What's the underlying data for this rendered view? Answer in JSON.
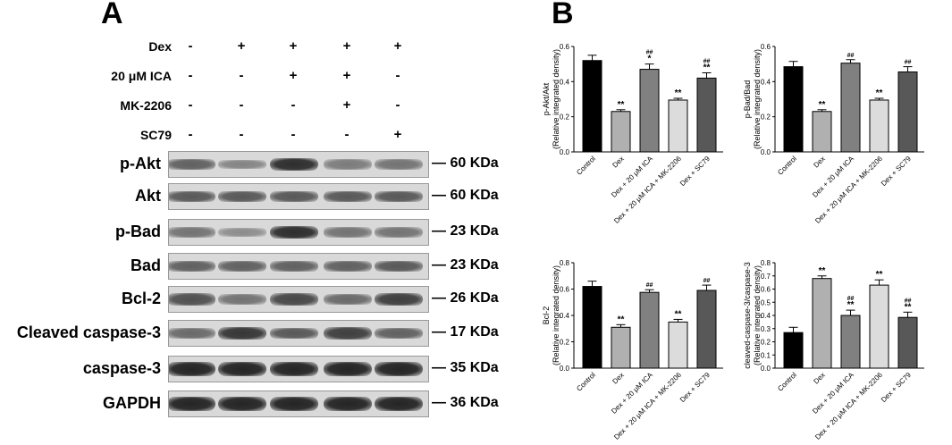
{
  "panelA": {
    "letter": "A",
    "treatments": [
      {
        "label": "Dex",
        "signs": [
          "-",
          "+",
          "+",
          "+",
          "+"
        ]
      },
      {
        "label": "20 μM ICA",
        "signs": [
          "-",
          "-",
          "+",
          "+",
          "-"
        ]
      },
      {
        "label": "MK-2206",
        "signs": [
          "-",
          "-",
          "-",
          "+",
          "-"
        ]
      },
      {
        "label": "SC79",
        "signs": [
          "-",
          "-",
          "-",
          "-",
          "+"
        ]
      }
    ],
    "blots": [
      {
        "label": "p-Akt",
        "kda": "60 KDa",
        "intensity": [
          0.55,
          0.35,
          0.85,
          0.4,
          0.45
        ]
      },
      {
        "label": "Akt",
        "kda": "60 KDa",
        "intensity": [
          0.6,
          0.6,
          0.6,
          0.6,
          0.6
        ]
      },
      {
        "label": "p-Bad",
        "kda": "23 KDa",
        "intensity": [
          0.45,
          0.3,
          0.85,
          0.45,
          0.45
        ]
      },
      {
        "label": "Bad",
        "kda": "23 KDa",
        "intensity": [
          0.55,
          0.55,
          0.55,
          0.55,
          0.6
        ]
      },
      {
        "label": "Bcl-2",
        "kda": "26 KDa",
        "intensity": [
          0.65,
          0.45,
          0.7,
          0.5,
          0.75
        ]
      },
      {
        "label": "Cleaved caspase-3",
        "kda": "17 KDa",
        "intensity": [
          0.5,
          0.8,
          0.6,
          0.75,
          0.55
        ]
      },
      {
        "label": "caspase-3",
        "kda": "35 KDa",
        "intensity": [
          0.9,
          0.9,
          0.9,
          0.9,
          0.9
        ]
      },
      {
        "label": "GAPDH",
        "kda": "36 KDa",
        "intensity": [
          0.9,
          0.9,
          0.9,
          0.9,
          0.9
        ]
      }
    ]
  },
  "panelB": {
    "letter": "B"
  },
  "chart_data": [
    {
      "type": "bar",
      "categories": [
        "Control",
        "Dex",
        "Dex + 20 μM ICA",
        "Dex + 20 μM ICA + MK-2206",
        "Dex + SC79"
      ],
      "values": [
        0.52,
        0.23,
        0.47,
        0.295,
        0.42
      ],
      "errors": [
        0.03,
        0.01,
        0.03,
        0.01,
        0.03
      ],
      "annotations": [
        "",
        "**",
        "##\n*",
        "**",
        "##\n**"
      ],
      "ylabel": "p-Akt/Akt\n(Relative integrated density)",
      "ylim": [
        0,
        0.6
      ],
      "yticks": [
        "0.0",
        "0.2",
        "0.4",
        "0.6"
      ],
      "colors": [
        "#000000",
        "#b0b0b0",
        "#808080",
        "#dcdcdc",
        "#585858"
      ]
    },
    {
      "type": "bar",
      "categories": [
        "Control",
        "Dex",
        "Dex + 20 μM ICA",
        "Dex + 20 μM ICA + MK-2206",
        "Dex + SC79"
      ],
      "values": [
        0.485,
        0.23,
        0.505,
        0.295,
        0.455
      ],
      "errors": [
        0.03,
        0.01,
        0.02,
        0.01,
        0.03
      ],
      "annotations": [
        "",
        "**",
        "##",
        "**",
        "##"
      ],
      "ylabel": "p-Bad/Bad\n(Relative integrated density)",
      "ylim": [
        0,
        0.6
      ],
      "yticks": [
        "0.0",
        "0.2",
        "0.4",
        "0.6"
      ],
      "colors": [
        "#000000",
        "#b0b0b0",
        "#808080",
        "#dcdcdc",
        "#585858"
      ]
    },
    {
      "type": "bar",
      "categories": [
        "Control",
        "Dex",
        "Dex + 20 μM ICA",
        "Dex + 20 μM ICA + MK-2206",
        "Dex + SC79"
      ],
      "values": [
        0.62,
        0.31,
        0.575,
        0.35,
        0.59
      ],
      "errors": [
        0.04,
        0.02,
        0.02,
        0.02,
        0.04
      ],
      "annotations": [
        "",
        "**",
        "##",
        "**",
        "##"
      ],
      "ylabel": "Bcl-2\n(Relative integrated density)",
      "ylim": [
        0,
        0.8
      ],
      "yticks": [
        "0.0",
        "0.2",
        "0.4",
        "0.6",
        "0.8"
      ],
      "colors": [
        "#000000",
        "#b0b0b0",
        "#808080",
        "#dcdcdc",
        "#585858"
      ]
    },
    {
      "type": "bar",
      "categories": [
        "Control",
        "Dex",
        "Dex + 20 μM ICA",
        "Dex + 20 μM ICA + MK-2206",
        "Dex + SC79"
      ],
      "values": [
        0.27,
        0.68,
        0.4,
        0.63,
        0.385
      ],
      "errors": [
        0.04,
        0.02,
        0.04,
        0.04,
        0.04
      ],
      "annotations": [
        "",
        "**",
        "##\n**",
        "**",
        "##\n**"
      ],
      "ylabel": "cleaved-caspase-3/caspase-3\n(Relative integrated density)",
      "ylim": [
        0,
        0.8
      ],
      "yticks": [
        "0.0",
        "0.1",
        "0.2",
        "0.3",
        "0.4",
        "0.5",
        "0.6",
        "0.7",
        "0.8"
      ],
      "colors": [
        "#000000",
        "#b0b0b0",
        "#808080",
        "#dcdcdc",
        "#585858"
      ]
    }
  ]
}
